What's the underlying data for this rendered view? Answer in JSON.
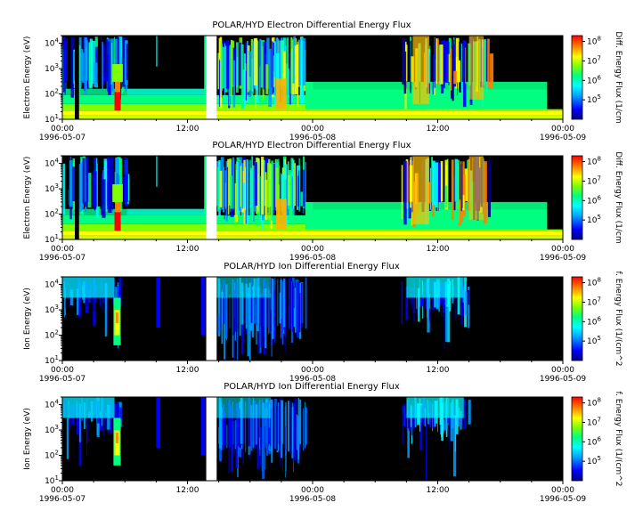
{
  "x_ticks": [
    "00:00",
    "12:00",
    "00:00",
    "12:00",
    "00:00"
  ],
  "x_dates": [
    "1996-05-07",
    "1996-05-08",
    "1996-05-09"
  ],
  "y_tick_exponents": [
    "1",
    "2",
    "3",
    "4"
  ],
  "cbar_tick_exponents": [
    "5",
    "6",
    "7",
    "8"
  ],
  "panels": [
    {
      "title": "POLAR/HYD  Electron Differential Energy Flux",
      "ylabel": "Electron Energy (eV)",
      "cbar_label": "Diff. Energy Flux (1/cm",
      "kind": "electron"
    },
    {
      "title": "POLAR/HYD  Electron Differential Energy Flux",
      "ylabel": "Electron Energy (eV)",
      "cbar_label": "Diff. Energy Flux (1/cm",
      "kind": "electron"
    },
    {
      "title": "POLAR/HYD  Ion Differential Energy Flux",
      "ylabel": "Ion Energy (eV)",
      "cbar_label": "f. Energy Flux (1/(cm^2",
      "kind": "ion"
    },
    {
      "title": "POLAR/HYD  Ion Differential Energy Flux",
      "ylabel": "Ion Energy (eV)",
      "cbar_label": "f. Energy Flux (1/(cm^2",
      "kind": "ion"
    }
  ],
  "chart_data": {
    "type": "heatmap",
    "x_range": [
      "1996-05-07 00:00",
      "1996-05-09 00:00"
    ],
    "y_scale": "log",
    "ylim_eV": [
      10,
      20000
    ],
    "colorbar_scale": "log",
    "colorbar_range": [
      10000,
      200000000
    ],
    "colormap": [
      "#00007f",
      "#0000ff",
      "#00a0ff",
      "#00ffff",
      "#00ff80",
      "#80ff00",
      "#ffff00",
      "#ff8000",
      "#ff0000"
    ],
    "background": "#000000",
    "data_gaps_hours": [
      [
        13.8,
        14.8
      ]
    ],
    "panels": [
      {
        "species": "electron",
        "features": [
          {
            "time_h": [
              0,
              13.8
            ],
            "energy_eV": [
              10,
              30
            ],
            "level": "yellow"
          },
          {
            "time_h": [
              0,
              13.8
            ],
            "energy_eV": [
              30,
              100
            ],
            "level": "green"
          },
          {
            "time_h": [
              14.8,
              24
            ],
            "energy_eV": [
              10,
              30
            ],
            "level": "yellow"
          },
          {
            "time_h": [
              24,
              46.5
            ],
            "energy_eV": [
              10,
              25
            ],
            "level": "yellow"
          },
          {
            "time_h": [
              24,
              46.5
            ],
            "energy_eV": [
              25,
              300
            ],
            "level": "green"
          },
          {
            "time_h": [
              5.0,
              5.6
            ],
            "energy_eV": [
              20,
              200
            ],
            "level": "red"
          },
          {
            "time_h": [
              33.5,
              35.5
            ],
            "energy_eV": [
              30,
              20000
            ],
            "level": "yellow-orange"
          },
          {
            "time_h": [
              39.0,
              40.5
            ],
            "energy_eV": [
              50,
              20000
            ],
            "level": "yellow-orange"
          }
        ]
      },
      {
        "species": "electron",
        "features": [
          {
            "time_h": [
              0,
              13.8
            ],
            "energy_eV": [
              10,
              30
            ],
            "level": "yellow"
          },
          {
            "time_h": [
              0,
              13.8
            ],
            "energy_eV": [
              30,
              100
            ],
            "level": "green"
          },
          {
            "time_h": [
              14.8,
              24
            ],
            "energy_eV": [
              10,
              30
            ],
            "level": "yellow"
          },
          {
            "time_h": [
              24,
              46.5
            ],
            "energy_eV": [
              10,
              25
            ],
            "level": "yellow"
          },
          {
            "time_h": [
              24,
              46.5
            ],
            "energy_eV": [
              25,
              300
            ],
            "level": "green"
          },
          {
            "time_h": [
              5.0,
              5.6
            ],
            "energy_eV": [
              20,
              200
            ],
            "level": "red"
          },
          {
            "time_h": [
              33.5,
              35.5
            ],
            "energy_eV": [
              30,
              20000
            ],
            "level": "yellow-orange"
          },
          {
            "time_h": [
              39.0,
              40.5
            ],
            "energy_eV": [
              50,
              20000
            ],
            "level": "yellow-orange"
          }
        ]
      },
      {
        "species": "ion",
        "features": [
          {
            "time_h": [
              4.8,
              5.7
            ],
            "energy_eV": [
              30,
              3000
            ],
            "level": "yellow"
          },
          {
            "time_h": [
              0,
              5
            ],
            "energy_eV": [
              1000,
              20000
            ],
            "level": "cyan"
          },
          {
            "time_h": [
              15,
              23
            ],
            "energy_eV": [
              10,
              20000
            ],
            "level": "blue"
          },
          {
            "time_h": [
              33,
              39
            ],
            "energy_eV": [
              100,
              20000
            ],
            "level": "cyan"
          }
        ]
      },
      {
        "species": "ion",
        "features": [
          {
            "time_h": [
              4.8,
              5.7
            ],
            "energy_eV": [
              30,
              3000
            ],
            "level": "yellow"
          },
          {
            "time_h": [
              0,
              5
            ],
            "energy_eV": [
              1000,
              20000
            ],
            "level": "cyan"
          },
          {
            "time_h": [
              15,
              23
            ],
            "energy_eV": [
              10,
              20000
            ],
            "level": "blue"
          },
          {
            "time_h": [
              33,
              39
            ],
            "energy_eV": [
              100,
              20000
            ],
            "level": "cyan"
          }
        ]
      }
    ]
  }
}
